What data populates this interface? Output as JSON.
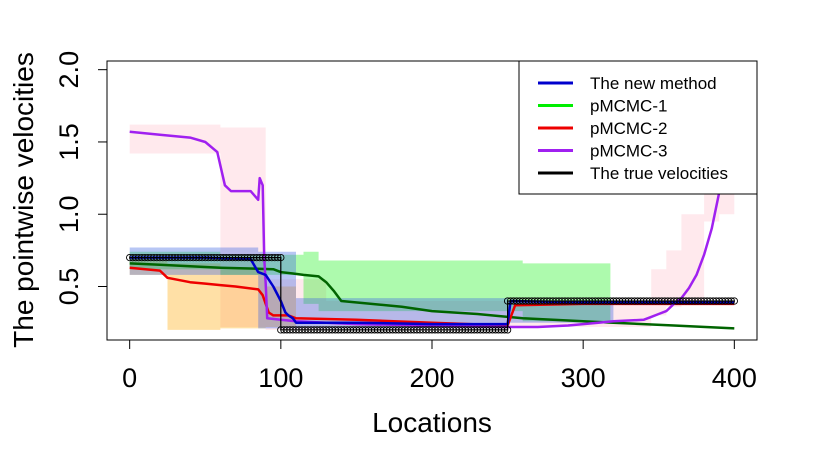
{
  "chart_data": {
    "type": "line",
    "title": "",
    "xlabel": "Locations",
    "ylabel": "The pointwise velocities",
    "xlim": [
      -15,
      415
    ],
    "ylim": [
      0.13,
      2.06
    ],
    "x_ticks": [
      0,
      100,
      200,
      300,
      400
    ],
    "y_ticks": [
      0.5,
      1.0,
      1.5,
      2.0
    ],
    "x_tick_labels": [
      "0",
      "100",
      "200",
      "300",
      "400"
    ],
    "y_tick_labels": [
      "0.5",
      "1.0",
      "1.5",
      "2.0"
    ],
    "grid": false,
    "legend_position": "top-right",
    "legend": [
      {
        "name": "The new method",
        "color": "#0000cd"
      },
      {
        "name": "pMCMC-1",
        "color": "#00ee00"
      },
      {
        "name": "pMCMC-2",
        "color": "#ee0000"
      },
      {
        "name": "pMCMC-3",
        "color": "#a020f0"
      },
      {
        "name": "The true velocities",
        "color": "#000000"
      }
    ],
    "bands": [
      {
        "series": "pMCMC-3",
        "color": "#ffc0cb",
        "opacity": 0.35,
        "x": [
          0,
          60,
          60,
          90,
          90,
          130,
          130,
          250,
          250,
          345,
          345,
          355,
          355,
          365,
          365,
          380,
          380,
          390,
          390,
          400
        ],
        "lower": [
          1.42,
          1.42,
          0.22,
          0.22,
          0.2,
          0.2,
          0.22,
          0.22,
          0.22,
          0.22,
          0.3,
          0.3,
          0.36,
          0.36,
          0.4,
          0.4,
          0.95,
          0.95,
          1.0,
          1.0
        ],
        "upper": [
          1.62,
          1.62,
          1.6,
          1.6,
          0.55,
          0.55,
          0.4,
          0.4,
          0.4,
          0.4,
          0.62,
          0.62,
          0.75,
          0.75,
          1.0,
          1.0,
          1.32,
          1.32,
          1.18,
          1.18
        ]
      },
      {
        "series": "pMCMC-2",
        "color": "#ffa500",
        "opacity": 0.35,
        "x": [
          0,
          25,
          25,
          60,
          60,
          90,
          90,
          110
        ],
        "lower": [
          0.58,
          0.58,
          0.2,
          0.2,
          0.21,
          0.21,
          0.22,
          0.22
        ],
        "upper": [
          0.68,
          0.68,
          0.66,
          0.66,
          0.62,
          0.62,
          0.5,
          0.5
        ]
      },
      {
        "series": "pMCMC-1",
        "color": "#00ee00",
        "opacity": 0.32,
        "x": [
          0,
          60,
          60,
          115,
          115,
          125,
          125,
          260,
          260,
          318
        ],
        "lower": [
          0.62,
          0.62,
          0.58,
          0.58,
          0.38,
          0.38,
          0.33,
          0.33,
          0.26,
          0.26
        ],
        "upper": [
          0.74,
          0.74,
          0.72,
          0.72,
          0.74,
          0.74,
          0.68,
          0.68,
          0.66,
          0.66
        ]
      },
      {
        "series": "The new method",
        "color": "#4169e1",
        "opacity": 0.38,
        "x": [
          0,
          85,
          85,
          110,
          110,
          250,
          250,
          320
        ],
        "lower": [
          0.58,
          0.58,
          0.21,
          0.21,
          0.21,
          0.21,
          0.25,
          0.25
        ],
        "upper": [
          0.77,
          0.77,
          0.74,
          0.74,
          0.42,
          0.42,
          0.4,
          0.4
        ]
      }
    ],
    "series": [
      {
        "name": "pMCMC-1",
        "color": "#006400",
        "width": 2.5,
        "x": [
          0,
          20,
          60,
          95,
          100,
          108,
          115,
          125,
          130,
          135,
          140,
          180,
          200,
          230,
          260,
          280,
          320,
          360,
          400
        ],
        "y": [
          0.66,
          0.65,
          0.63,
          0.62,
          0.6,
          0.59,
          0.58,
          0.57,
          0.53,
          0.47,
          0.4,
          0.36,
          0.33,
          0.31,
          0.28,
          0.27,
          0.25,
          0.23,
          0.21
        ]
      },
      {
        "name": "pMCMC-2",
        "color": "#ee0000",
        "width": 2.5,
        "x": [
          0,
          20,
          25,
          40,
          50,
          60,
          70,
          85,
          88,
          90,
          92,
          95,
          105,
          110,
          150,
          200,
          250,
          255,
          300,
          400
        ],
        "y": [
          0.63,
          0.61,
          0.56,
          0.53,
          0.52,
          0.51,
          0.5,
          0.48,
          0.44,
          0.38,
          0.32,
          0.3,
          0.3,
          0.28,
          0.27,
          0.25,
          0.23,
          0.37,
          0.38,
          0.38
        ]
      },
      {
        "name": "pMCMC-3",
        "color": "#a020f0",
        "width": 2.5,
        "x": [
          0,
          10,
          20,
          40,
          50,
          58,
          63,
          67,
          80,
          85,
          86,
          88,
          89,
          90,
          91,
          100,
          110,
          130,
          150,
          200,
          250,
          270,
          290,
          300,
          310,
          320,
          340,
          345,
          350,
          355,
          360,
          365,
          370,
          375,
          380,
          385,
          390
        ],
        "y": [
          1.57,
          1.56,
          1.55,
          1.53,
          1.5,
          1.43,
          1.2,
          1.16,
          1.16,
          1.1,
          1.25,
          1.2,
          0.7,
          0.52,
          0.28,
          0.27,
          0.26,
          0.25,
          0.24,
          0.23,
          0.22,
          0.22,
          0.23,
          0.24,
          0.25,
          0.26,
          0.27,
          0.29,
          0.31,
          0.33,
          0.38,
          0.42,
          0.49,
          0.58,
          0.72,
          0.9,
          1.15
        ]
      },
      {
        "name": "The new method",
        "color": "#0000cd",
        "width": 2.5,
        "x": [
          0,
          50,
          80,
          85,
          90,
          95,
          100,
          103,
          105,
          108,
          110,
          150,
          200,
          250,
          252,
          300,
          400
        ],
        "y": [
          0.7,
          0.7,
          0.69,
          0.6,
          0.58,
          0.5,
          0.4,
          0.32,
          0.3,
          0.28,
          0.25,
          0.25,
          0.24,
          0.24,
          0.4,
          0.39,
          0.39
        ]
      },
      {
        "name": "The true velocities",
        "color": "#000000",
        "width": 1.2,
        "marker": "circle",
        "x": [
          0,
          100,
          100,
          250,
          250,
          400
        ],
        "y": [
          0.7,
          0.7,
          0.2,
          0.2,
          0.4,
          0.4
        ]
      }
    ]
  }
}
